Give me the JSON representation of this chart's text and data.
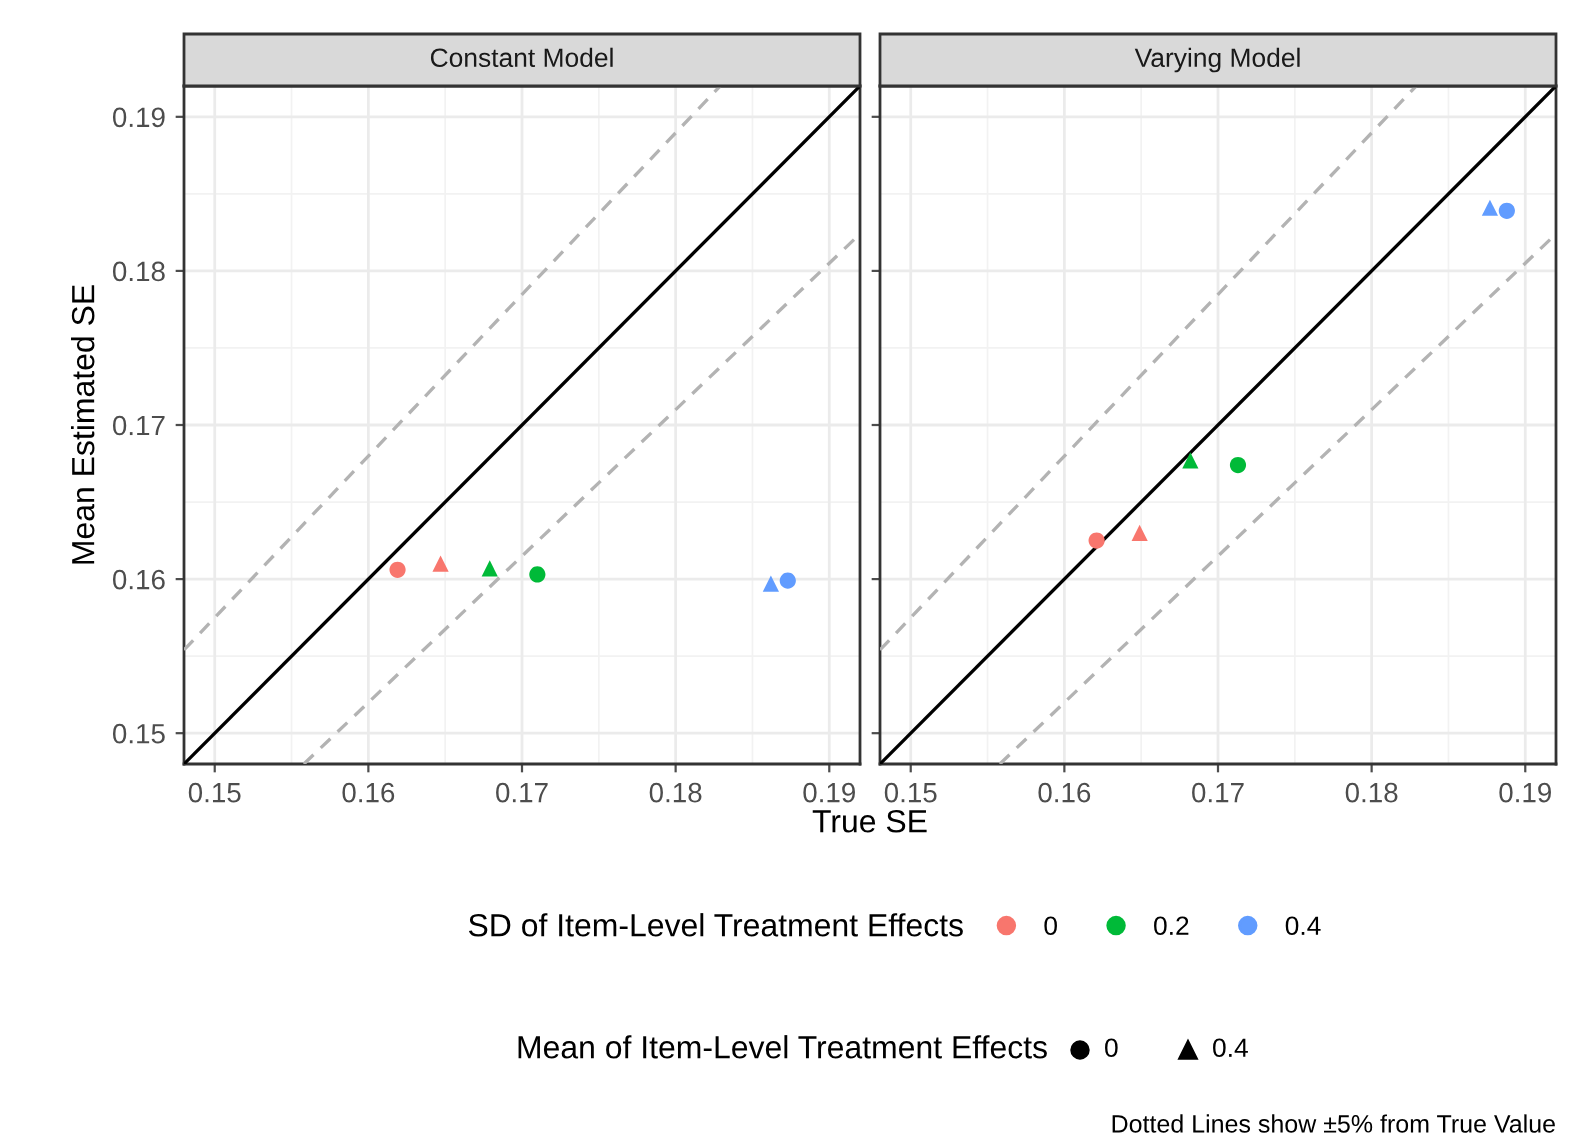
{
  "chart_data": [
    {
      "type": "scatter",
      "title": "Constant Model",
      "xlabel": "True SE",
      "ylabel": "Mean Estimated SE",
      "xlim": [
        0.148,
        0.192
      ],
      "ylim": [
        0.148,
        0.192
      ],
      "xticks": [
        0.15,
        0.16,
        0.17,
        0.18,
        0.19
      ],
      "yticks": [
        0.15,
        0.16,
        0.17,
        0.18,
        0.19
      ],
      "grid": true,
      "legend": "bottom",
      "legend_title": "SD of Item-Level Treatment Effects",
      "series": [
        {
          "name": "0",
          "color": "#f8766d",
          "marker": "circle",
          "x": [
            0.1619
          ],
          "values": [
            0.1606
          ]
        },
        {
          "color": "#f8766d",
          "marker": "triangle",
          "x": [
            0.1647
          ],
          "values": [
            0.161
          ]
        },
        {
          "name": "0.2",
          "color": "#00ba38",
          "marker": "circle",
          "x": [
            0.171
          ],
          "values": [
            0.1603
          ]
        },
        {
          "color": "#00ba38",
          "marker": "triangle",
          "x": [
            0.1679
          ],
          "values": [
            0.1607
          ]
        },
        {
          "name": "0.4",
          "color": "#619cff",
          "marker": "circle",
          "x": [
            0.1873
          ],
          "values": [
            0.1599
          ]
        },
        {
          "color": "#619cff",
          "marker": "triangle",
          "x": [
            0.1862
          ],
          "values": [
            0.1597
          ]
        },
        {
          "type": "line",
          "color": "#000000",
          "line_style": "solid",
          "x": [
            0.148,
            0.192
          ],
          "values": [
            0.148,
            0.192
          ]
        },
        {
          "type": "line",
          "color": "#b3b3b3",
          "line_style": "dashed",
          "x": [
            0.148,
            0.1829
          ],
          "values": [
            0.1554,
            0.192
          ]
        },
        {
          "type": "line",
          "color": "#b3b3b3",
          "line_style": "dashed",
          "x": [
            0.1558,
            0.192
          ],
          "values": [
            0.148,
            0.1824
          ]
        }
      ],
      "annotations": [
        "Mean of Item-Level Treatment Effects",
        "0",
        "0.4",
        "Dotted Lines show ±5% from True Value"
      ]
    },
    {
      "type": "scatter",
      "title": "Varying Model",
      "xlim": [
        0.148,
        0.192
      ],
      "ylim": [
        0.148,
        0.192
      ],
      "xticks": [
        0.15,
        0.16,
        0.17,
        0.18,
        0.19
      ],
      "yticks": [
        0.15,
        0.16,
        0.17,
        0.18,
        0.19
      ],
      "grid": true,
      "tick_labels": "x",
      "series": [
        {
          "color": "#f8766d",
          "marker": "circle",
          "x": [
            0.1621
          ],
          "values": [
            0.1625
          ]
        },
        {
          "color": "#f8766d",
          "marker": "triangle",
          "x": [
            0.1649
          ],
          "values": [
            0.163
          ]
        },
        {
          "color": "#00ba38",
          "marker": "circle",
          "x": [
            0.1713
          ],
          "values": [
            0.1674
          ]
        },
        {
          "color": "#00ba38",
          "marker": "triangle",
          "x": [
            0.1682
          ],
          "values": [
            0.1677
          ]
        },
        {
          "color": "#619cff",
          "marker": "circle",
          "x": [
            0.1888
          ],
          "values": [
            0.1839
          ]
        },
        {
          "color": "#619cff",
          "marker": "triangle",
          "x": [
            0.1877
          ],
          "values": [
            0.1841
          ]
        },
        {
          "type": "line",
          "color": "#000000",
          "line_style": "solid",
          "x": [
            0.148,
            0.192
          ],
          "values": [
            0.148,
            0.192
          ]
        },
        {
          "type": "line",
          "color": "#b3b3b3",
          "line_style": "dashed",
          "x": [
            0.148,
            0.1829
          ],
          "values": [
            0.1554,
            0.192
          ]
        },
        {
          "type": "line",
          "color": "#b3b3b3",
          "line_style": "dashed",
          "x": [
            0.1558,
            0.192
          ],
          "values": [
            0.148,
            0.1824
          ]
        }
      ]
    }
  ]
}
